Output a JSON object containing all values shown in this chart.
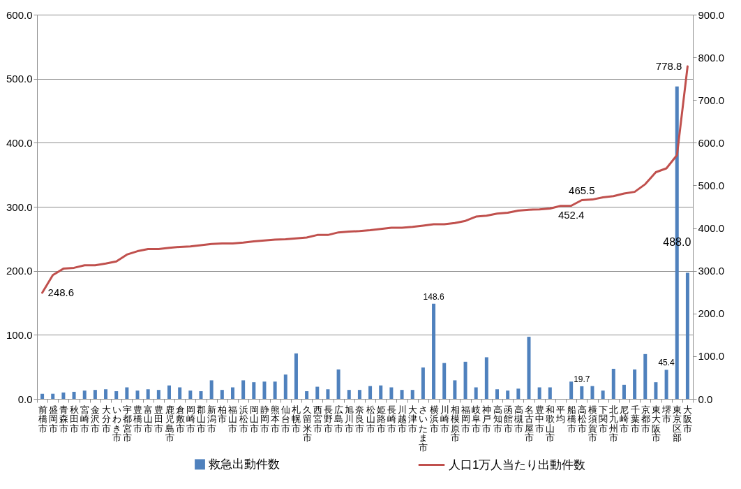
{
  "chart_data": {
    "type": "bar",
    "categories": [
      "前橋市",
      "盛岡市",
      "青森市",
      "秋田市",
      "宮崎市",
      "金沢市",
      "大分市",
      "いわき市",
      "宇都宮市",
      "豊橋市",
      "富山市",
      "豊田市",
      "鹿児島市",
      "倉敷市",
      "岡崎市",
      "郡山市",
      "新潟市",
      "柏市",
      "福山市",
      "浜松市",
      "岡山市",
      "静岡市",
      "熊本市",
      "仙台市",
      "札幌市",
      "久留米市",
      "西宮市",
      "長野市",
      "広島市",
      "旭川市",
      "奈良市",
      "松山市",
      "姫路市",
      "長崎市",
      "川越市",
      "大津市",
      "さいたま市",
      "横浜市",
      "川崎市",
      "相模原市",
      "福岡市",
      "岐阜市",
      "神戸市",
      "高知市",
      "函館市",
      "高槻市",
      "名古屋市",
      "豊中市",
      "和歌山市",
      "平均",
      "船橋市",
      "高松市",
      "横須賀市",
      "下関市",
      "北九州市",
      "尼崎市",
      "千葉市",
      "京都市",
      "東大阪市",
      "堺市",
      "東京区部",
      "大阪市"
    ],
    "series": [
      {
        "name": "救急出動件数",
        "color": "#4f81bd",
        "values": [
          8,
          8,
          10,
          11,
          13,
          14,
          15,
          12,
          18,
          13,
          15,
          14,
          21,
          18,
          13,
          12,
          29,
          14,
          18,
          29,
          26,
          27,
          27,
          38,
          71,
          12,
          19,
          15,
          46,
          14,
          14,
          20,
          21,
          18,
          14,
          14,
          49,
          148.6,
          56,
          29,
          58,
          18,
          65,
          15,
          13,
          16,
          97,
          18,
          18,
          null,
          27,
          19.7,
          20,
          13,
          47,
          22,
          46,
          70,
          26,
          45.4,
          488.0,
          197
        ],
        "value_labels": [
          null,
          null,
          null,
          null,
          null,
          null,
          null,
          null,
          null,
          null,
          null,
          null,
          null,
          null,
          null,
          null,
          null,
          null,
          null,
          null,
          null,
          null,
          null,
          null,
          null,
          null,
          null,
          null,
          null,
          null,
          null,
          null,
          null,
          null,
          null,
          null,
          null,
          "148.6",
          null,
          null,
          null,
          null,
          null,
          null,
          null,
          null,
          null,
          null,
          null,
          null,
          null,
          "19.7",
          null,
          null,
          null,
          null,
          null,
          null,
          null,
          "45.4",
          "488.0",
          null
        ]
      },
      {
        "name": "人口1万人当たり出動件数",
        "type": "line",
        "axis": "y2",
        "color": "#c0504d",
        "values": [
          248.6,
          290,
          305,
          307,
          313,
          313,
          317,
          322,
          338,
          346,
          351,
          351,
          354,
          356,
          357,
          360,
          363,
          364,
          364,
          366,
          369,
          371,
          373,
          374,
          376,
          378,
          384,
          384,
          390,
          392,
          393,
          395,
          398,
          401,
          401,
          403,
          406,
          409,
          409,
          412,
          417,
          427,
          429,
          434,
          436,
          441,
          443,
          444,
          446,
          452,
          452.4,
          465.5,
          467,
          472,
          475,
          481,
          485,
          503,
          531,
          540,
          571,
          778.8
        ],
        "value_labels": [
          "248.6",
          null,
          null,
          null,
          null,
          null,
          null,
          null,
          null,
          null,
          null,
          null,
          null,
          null,
          null,
          null,
          null,
          null,
          null,
          null,
          null,
          null,
          null,
          null,
          null,
          null,
          null,
          null,
          null,
          null,
          null,
          null,
          null,
          null,
          null,
          null,
          null,
          null,
          null,
          null,
          null,
          null,
          null,
          null,
          null,
          null,
          null,
          null,
          null,
          null,
          "452.4",
          "465.5",
          null,
          null,
          null,
          null,
          null,
          null,
          null,
          null,
          null,
          "778.8"
        ]
      }
    ],
    "ylim": [
      0,
      600
    ],
    "yticks": [
      {
        "value": 0,
        "label": "0.0"
      },
      {
        "value": 100,
        "label": "100.0"
      },
      {
        "value": 200,
        "label": "200.0"
      },
      {
        "value": 300,
        "label": "300.0"
      },
      {
        "value": 400,
        "label": "400.0"
      },
      {
        "value": 500,
        "label": "500.0"
      },
      {
        "value": 600,
        "label": "600.0"
      }
    ],
    "y2lim": [
      0,
      900
    ],
    "y2ticks": [
      {
        "value": 0,
        "label": "0.0"
      },
      {
        "value": 100,
        "label": "100.0"
      },
      {
        "value": 200,
        "label": "200.0"
      },
      {
        "value": 300,
        "label": "300.0"
      },
      {
        "value": 400,
        "label": "400.0"
      },
      {
        "value": 500,
        "label": "500.0"
      },
      {
        "value": 600,
        "label": "600.0"
      },
      {
        "value": 700,
        "label": "700.0"
      },
      {
        "value": 800,
        "label": "800.0"
      },
      {
        "value": 900,
        "label": "900.0"
      }
    ],
    "grid": "y",
    "legend": "bottom"
  }
}
